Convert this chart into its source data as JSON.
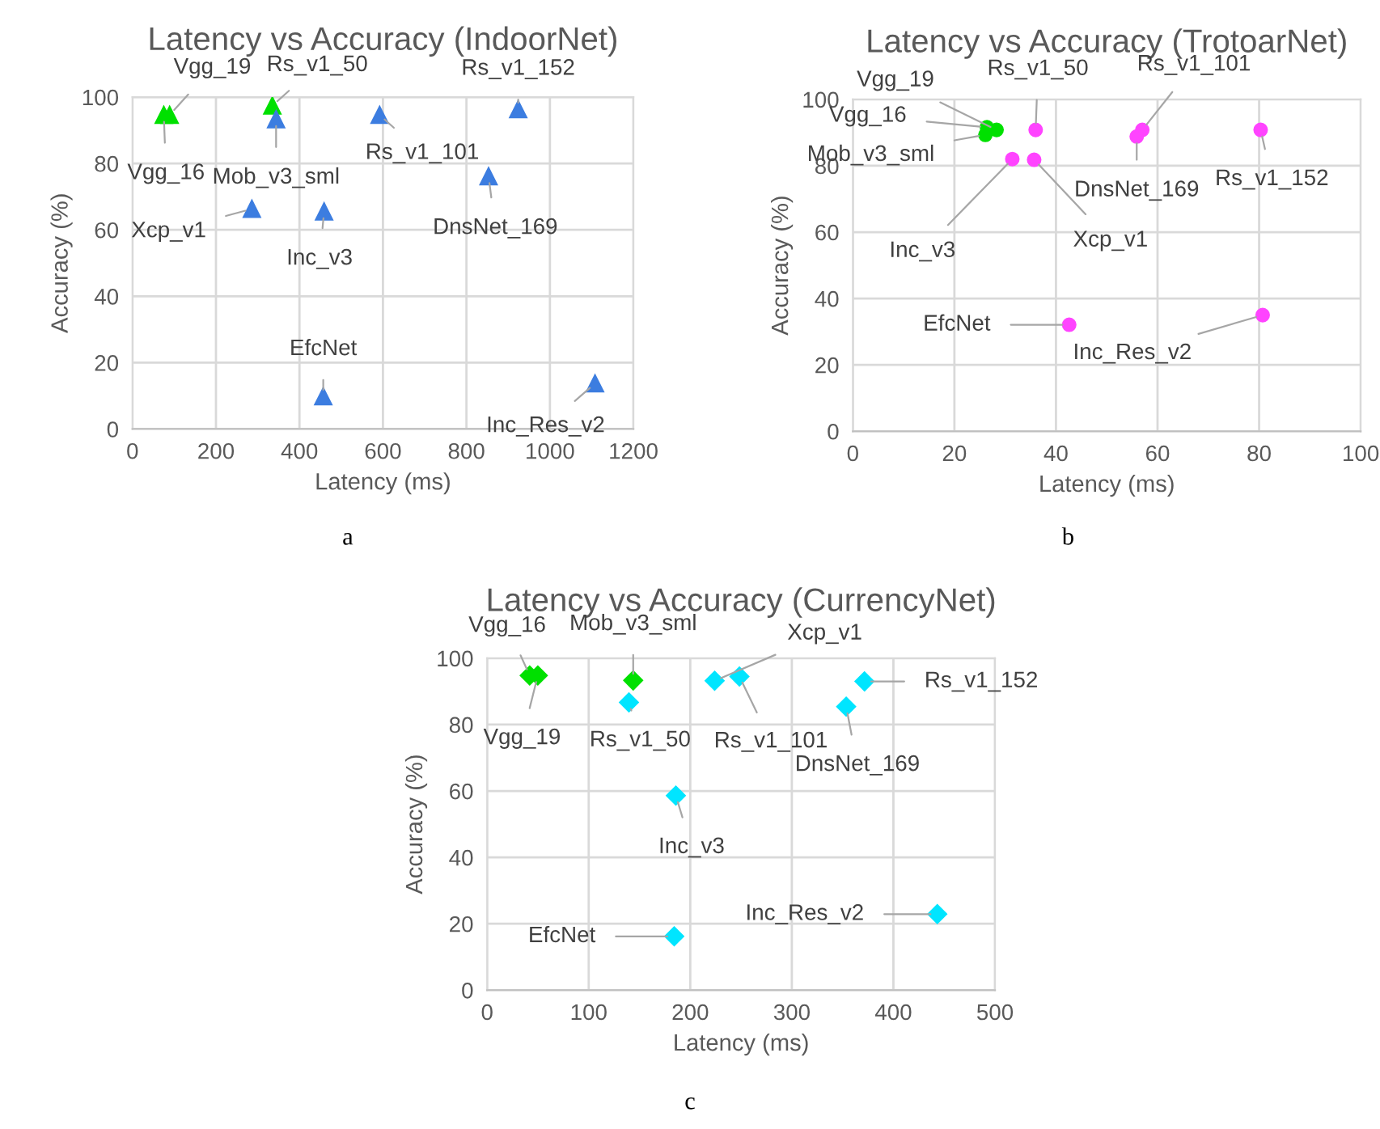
{
  "chart_data": [
    {
      "type": "scatter",
      "title": "Latency vs Accuracy (IndoorNet)",
      "xlabel": "Latency (ms)",
      "ylabel": "Accuracy (%)",
      "marker": "triangle",
      "grid": true,
      "xlim": [
        0,
        1200
      ],
      "xticks": [
        0,
        200,
        400,
        600,
        800,
        1000,
        1200
      ],
      "ylim": [
        0,
        100
      ],
      "yticks": [
        0,
        20,
        40,
        60,
        80,
        100
      ],
      "series": [
        {
          "color": "#00e000",
          "x": [
            75,
            89,
            335
          ],
          "values": [
            94.6,
            94.6,
            97.4
          ]
        },
        {
          "color": "#3c7de0",
          "x": [
            344,
            592,
            924,
            853,
            286,
            459,
            457,
            1108
          ],
          "values": [
            93.3,
            94.6,
            96.3,
            76.1,
            66.3,
            65.5,
            9.8,
            13.7
          ]
        }
      ],
      "annotations": [
        {
          "text": "Vgg_16",
          "x": 75,
          "y": 94.6
        },
        {
          "text": "Vgg_19",
          "x": 89,
          "y": 94.6
        },
        {
          "text": "Rs_v1_50",
          "x": 335,
          "y": 97.4
        },
        {
          "text": "Mob_v3_sml",
          "x": 344,
          "y": 93.3
        },
        {
          "text": "Rs_v1_101",
          "x": 592,
          "y": 94.6
        },
        {
          "text": "Rs_v1_152",
          "x": 924,
          "y": 96.3
        },
        {
          "text": "DnsNet_169",
          "x": 853,
          "y": 76.1
        },
        {
          "text": "Xcp_v1",
          "x": 286,
          "y": 66.3
        },
        {
          "text": "Inc_v3",
          "x": 459,
          "y": 65.5
        },
        {
          "text": "EfcNet",
          "x": 457,
          "y": 9.8
        },
        {
          "text": "Inc_Res_v2",
          "x": 1108,
          "y": 13.7
        },
        "a"
      ]
    },
    {
      "type": "scatter",
      "title": "Latency vs Accuracy (TrotoarNet)",
      "xlabel": "Latency (ms)",
      "ylabel": "Accuracy (%)",
      "marker": "circle",
      "grid": true,
      "xlim": [
        0,
        100
      ],
      "xticks": [
        0,
        20,
        40,
        60,
        80,
        100
      ],
      "ylim": [
        0,
        100
      ],
      "yticks": [
        0,
        20,
        40,
        60,
        80,
        100
      ],
      "series": [
        {
          "color": "#00e000",
          "x": [
            28.3,
            26.4,
            26.1
          ],
          "values": [
            90.8,
            91.6,
            89.3
          ]
        },
        {
          "color": "#ff44ff",
          "x": [
            36.0,
            57.0,
            55.9,
            80.3,
            31.4,
            35.7,
            42.6,
            80.7
          ],
          "values": [
            90.8,
            90.8,
            88.8,
            90.8,
            82.0,
            81.8,
            32.1,
            35.0
          ]
        }
      ],
      "annotations": [
        {
          "text": "Vgg_19",
          "x": 28.3,
          "y": 90.8
        },
        {
          "text": "Vgg_16",
          "x": 26.4,
          "y": 91.6
        },
        {
          "text": "Mob_v3_sml",
          "x": 26.1,
          "y": 89.3
        },
        {
          "text": "Rs_v1_50",
          "x": 36.0,
          "y": 90.8
        },
        {
          "text": "Rs_v1_101",
          "x": 57.0,
          "y": 90.8
        },
        {
          "text": "DnsNet_169",
          "x": 55.9,
          "y": 88.8
        },
        {
          "text": "Rs_v1_152",
          "x": 80.3,
          "y": 90.8
        },
        {
          "text": "Inc_v3",
          "x": 31.4,
          "y": 82.0
        },
        {
          "text": "Xcp_v1",
          "x": 35.7,
          "y": 81.8
        },
        {
          "text": "EfcNet",
          "x": 42.6,
          "y": 32.1
        },
        {
          "text": "Inc_Res_v2",
          "x": 80.7,
          "y": 35.0
        },
        "b"
      ]
    },
    {
      "type": "scatter",
      "title": "Latency vs Accuracy (CurrencyNet)",
      "xlabel": "Latency (ms)",
      "ylabel": "Accuracy (%)",
      "marker": "diamond",
      "grid": true,
      "xlim": [
        0,
        500
      ],
      "xticks": [
        0,
        100,
        200,
        300,
        400,
        500
      ],
      "ylim": [
        0,
        100
      ],
      "yticks": [
        0,
        20,
        40,
        60,
        80,
        100
      ],
      "series": [
        {
          "color": "#00e000",
          "x": [
            41.9,
            49.9,
            143.8
          ],
          "values": [
            94.8,
            94.8,
            93.3
          ]
        },
        {
          "color": "#00e5ff",
          "x": [
            139.6,
            224,
            248.4,
            371.5,
            353.5,
            185.8,
            184.2,
            443.2
          ],
          "values": [
            86.7,
            93.2,
            94.5,
            93.0,
            85.4,
            58.6,
            16.2,
            22.9
          ]
        }
      ],
      "annotations": [
        {
          "text": "Vgg_16",
          "x": 41.9,
          "y": 94.8
        },
        {
          "text": "Vgg_19",
          "x": 49.9,
          "y": 94.8
        },
        {
          "text": "Mob_v3_sml",
          "x": 143.8,
          "y": 93.3
        },
        {
          "text": "Rs_v1_50",
          "x": 139.6,
          "y": 86.7
        },
        {
          "text": "Xcp_v1",
          "x": 224,
          "y": 93.2
        },
        {
          "text": "Rs_v1_101",
          "x": 248.4,
          "y": 94.5
        },
        {
          "text": "Rs_v1_152",
          "x": 371.5,
          "y": 93.0
        },
        {
          "text": "DnsNet_169",
          "x": 353.5,
          "y": 85.4
        },
        {
          "text": "Inc_v3",
          "x": 185.8,
          "y": 58.6
        },
        {
          "text": "EfcNet",
          "x": 184.2,
          "y": 16.2
        },
        {
          "text": "Inc_Res_v2",
          "x": 443.2,
          "y": 22.9
        },
        "c"
      ]
    }
  ]
}
